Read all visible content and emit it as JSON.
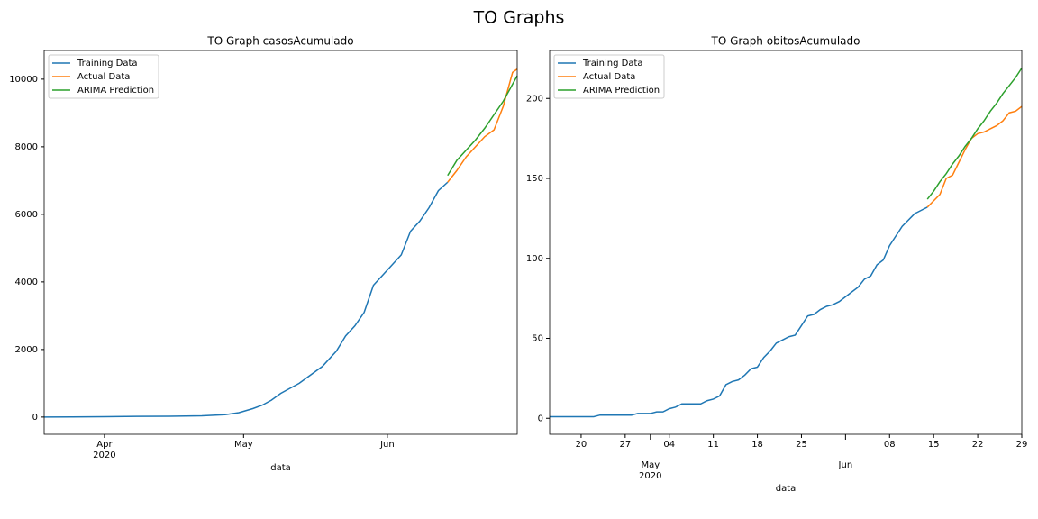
{
  "title": "TO Graphs",
  "chart_data": [
    {
      "type": "line",
      "title": "TO Graph casosAcumulado",
      "xlabel": "data",
      "grid": false,
      "legend": "upper left",
      "x": [
        "2020-03-19",
        "2020-03-25",
        "2020-04-01",
        "2020-04-08",
        "2020-04-15",
        "2020-04-22",
        "2020-04-27",
        "2020-04-30",
        "2020-05-03",
        "2020-05-05",
        "2020-05-07",
        "2020-05-09",
        "2020-05-11",
        "2020-05-13",
        "2020-05-15",
        "2020-05-18",
        "2020-05-21",
        "2020-05-23",
        "2020-05-25",
        "2020-05-27",
        "2020-05-29",
        "2020-06-01",
        "2020-06-04",
        "2020-06-06",
        "2020-06-08",
        "2020-06-10",
        "2020-06-12",
        "2020-06-14",
        "2020-06-16",
        "2020-06-18",
        "2020-06-20",
        "2020-06-22",
        "2020-06-24",
        "2020-06-26",
        "2020-06-28",
        "2020-06-29"
      ],
      "series": [
        {
          "name": "Training Data",
          "color": "#1f77b4",
          "values": [
            0,
            5,
            10,
            20,
            25,
            35,
            70,
            130,
            250,
            350,
            500,
            700,
            850,
            1000,
            1200,
            1500,
            1950,
            2400,
            2700,
            3100,
            3900,
            4350,
            4800,
            5500,
            5800,
            6200,
            6700,
            6950,
            null,
            null,
            null,
            null,
            null,
            null,
            null,
            null
          ]
        },
        {
          "name": "Actual Data",
          "color": "#ff7f0e",
          "values": [
            null,
            null,
            null,
            null,
            null,
            null,
            null,
            null,
            null,
            null,
            null,
            null,
            null,
            null,
            null,
            null,
            null,
            null,
            null,
            null,
            null,
            null,
            null,
            null,
            null,
            null,
            null,
            6950,
            7300,
            7700,
            8000,
            8300,
            8500,
            9200,
            10200,
            10300
          ]
        },
        {
          "name": "ARIMA Prediction",
          "color": "#2ca02c",
          "values": [
            null,
            null,
            null,
            null,
            null,
            null,
            null,
            null,
            null,
            null,
            null,
            null,
            null,
            null,
            null,
            null,
            null,
            null,
            null,
            null,
            null,
            null,
            null,
            null,
            null,
            null,
            null,
            7150,
            7600,
            7900,
            8200,
            8550,
            8950,
            9350,
            9850,
            10100
          ]
        }
      ],
      "xlim": [
        "2020-03-19",
        "2020-06-29"
      ],
      "xticks": [
        {
          "value": "2020-04-01",
          "label": "Apr\n2020"
        },
        {
          "value": "2020-05-01",
          "label": "May"
        },
        {
          "value": "2020-06-01",
          "label": "Jun"
        }
      ],
      "ylim": [
        -510,
        10850
      ],
      "yticks": [
        0,
        2000,
        4000,
        6000,
        8000,
        10000
      ]
    },
    {
      "type": "line",
      "title": "TO Graph obitosAcumulado",
      "xlabel": "data",
      "grid": false,
      "legend": "upper left",
      "x": [
        "2020-04-15",
        "2020-04-22",
        "2020-04-23",
        "2020-04-28",
        "2020-04-29",
        "2020-05-01",
        "2020-05-02",
        "2020-05-03",
        "2020-05-04",
        "2020-05-05",
        "2020-05-06",
        "2020-05-09",
        "2020-05-10",
        "2020-05-11",
        "2020-05-12",
        "2020-05-13",
        "2020-05-14",
        "2020-05-15",
        "2020-05-16",
        "2020-05-17",
        "2020-05-18",
        "2020-05-19",
        "2020-05-20",
        "2020-05-21",
        "2020-05-22",
        "2020-05-23",
        "2020-05-24",
        "2020-05-25",
        "2020-05-26",
        "2020-05-27",
        "2020-05-28",
        "2020-05-29",
        "2020-05-30",
        "2020-05-31",
        "2020-06-01",
        "2020-06-02",
        "2020-06-03",
        "2020-06-04",
        "2020-06-05",
        "2020-06-06",
        "2020-06-07",
        "2020-06-08",
        "2020-06-09",
        "2020-06-10",
        "2020-06-11",
        "2020-06-12",
        "2020-06-13",
        "2020-06-14",
        "2020-06-15",
        "2020-06-16",
        "2020-06-17",
        "2020-06-18",
        "2020-06-19",
        "2020-06-20",
        "2020-06-21",
        "2020-06-22",
        "2020-06-23",
        "2020-06-24",
        "2020-06-25",
        "2020-06-26",
        "2020-06-27",
        "2020-06-28",
        "2020-06-29"
      ],
      "series": [
        {
          "name": "Training Data",
          "color": "#1f77b4",
          "values": [
            1,
            1,
            2,
            2,
            3,
            3,
            4,
            4,
            6,
            7,
            9,
            9,
            11,
            12,
            14,
            21,
            23,
            24,
            27,
            31,
            32,
            38,
            42,
            47,
            49,
            51,
            52,
            58,
            64,
            65,
            68,
            70,
            71,
            73,
            76,
            79,
            82,
            87,
            89,
            96,
            99,
            108,
            114,
            120,
            124,
            128,
            130,
            132,
            null,
            null,
            null,
            null,
            null,
            null,
            null,
            null,
            null,
            null,
            null,
            null,
            null,
            null,
            null
          ]
        },
        {
          "name": "Actual Data",
          "color": "#ff7f0e",
          "values": [
            null,
            null,
            null,
            null,
            null,
            null,
            null,
            null,
            null,
            null,
            null,
            null,
            null,
            null,
            null,
            null,
            null,
            null,
            null,
            null,
            null,
            null,
            null,
            null,
            null,
            null,
            null,
            null,
            null,
            null,
            null,
            null,
            null,
            null,
            null,
            null,
            null,
            null,
            null,
            null,
            null,
            null,
            null,
            null,
            null,
            null,
            null,
            132,
            136,
            140,
            150,
            152,
            160,
            168,
            175,
            178,
            179,
            181,
            183,
            186,
            191,
            192,
            195
          ]
        },
        {
          "name": "ARIMA Prediction",
          "color": "#2ca02c",
          "values": [
            null,
            null,
            null,
            null,
            null,
            null,
            null,
            null,
            null,
            null,
            null,
            null,
            null,
            null,
            null,
            null,
            null,
            null,
            null,
            null,
            null,
            null,
            null,
            null,
            null,
            null,
            null,
            null,
            null,
            null,
            null,
            null,
            null,
            null,
            null,
            null,
            null,
            null,
            null,
            null,
            null,
            null,
            null,
            null,
            null,
            null,
            null,
            137,
            142,
            148,
            153,
            159,
            164,
            170,
            175,
            181,
            186,
            192,
            197,
            203,
            208,
            213,
            219
          ]
        }
      ],
      "xlim": [
        "2020-04-15",
        "2020-06-29"
      ],
      "xticks": [
        {
          "value": "2020-04-20",
          "label": "20"
        },
        {
          "value": "2020-04-27",
          "label": "27"
        },
        {
          "value": "2020-05-01",
          "label": "May\n2020"
        },
        {
          "value": "2020-05-04",
          "label": "04"
        },
        {
          "value": "2020-05-11",
          "label": "11"
        },
        {
          "value": "2020-05-18",
          "label": "18"
        },
        {
          "value": "2020-05-25",
          "label": "25"
        },
        {
          "value": "2020-06-01",
          "label": "Jun"
        },
        {
          "value": "2020-06-08",
          "label": "08"
        },
        {
          "value": "2020-06-15",
          "label": "15"
        },
        {
          "value": "2020-06-22",
          "label": "22"
        },
        {
          "value": "2020-06-29",
          "label": "29"
        }
      ],
      "ylim": [
        -10,
        230
      ],
      "yticks": [
        0,
        50,
        100,
        150,
        200
      ]
    }
  ]
}
